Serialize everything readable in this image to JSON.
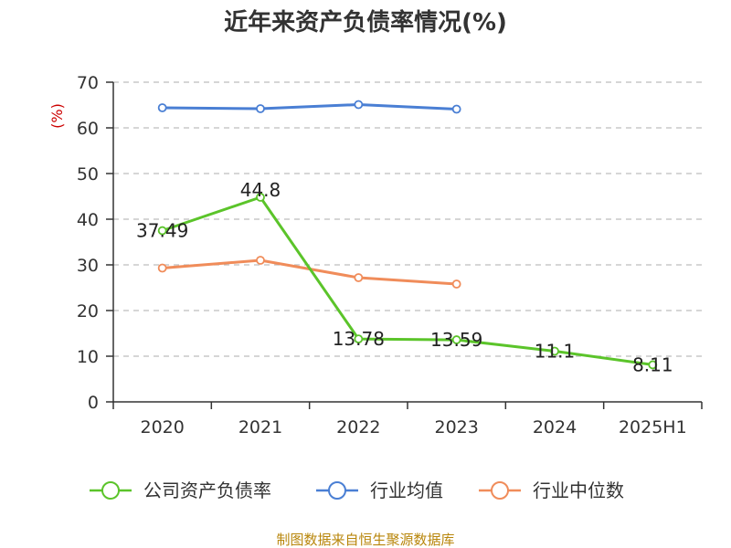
{
  "chart_data": {
    "type": "line",
    "title": "近年来资产负债率情况(%)",
    "ylabel": "(%)",
    "xlabel": "",
    "categories": [
      "2020",
      "2021",
      "2022",
      "2023",
      "2024",
      "2025H1"
    ],
    "ylim": [
      0,
      70
    ],
    "yticks": [
      0,
      10,
      20,
      30,
      40,
      50,
      60,
      70
    ],
    "grid": "horizontal-dashed",
    "legend_position": "bottom",
    "series": [
      {
        "name": "公司资产负债率",
        "color": "#5bc42a",
        "values": [
          37.49,
          44.8,
          13.78,
          13.59,
          11.1,
          8.11
        ],
        "labels": [
          "37.49",
          "44.8",
          "13.78",
          "13.59",
          "11.1",
          "8.11"
        ],
        "show_labels": true
      },
      {
        "name": "行业均值",
        "color": "#4a7fd4",
        "values": [
          64.4,
          64.2,
          65.1,
          64.1,
          null,
          null
        ],
        "show_labels": false
      },
      {
        "name": "行业中位数",
        "color": "#f08c5a",
        "values": [
          29.3,
          31.0,
          27.2,
          25.8,
          null,
          null
        ],
        "show_labels": false
      }
    ]
  },
  "source": "制图数据来自恒生聚源数据库"
}
